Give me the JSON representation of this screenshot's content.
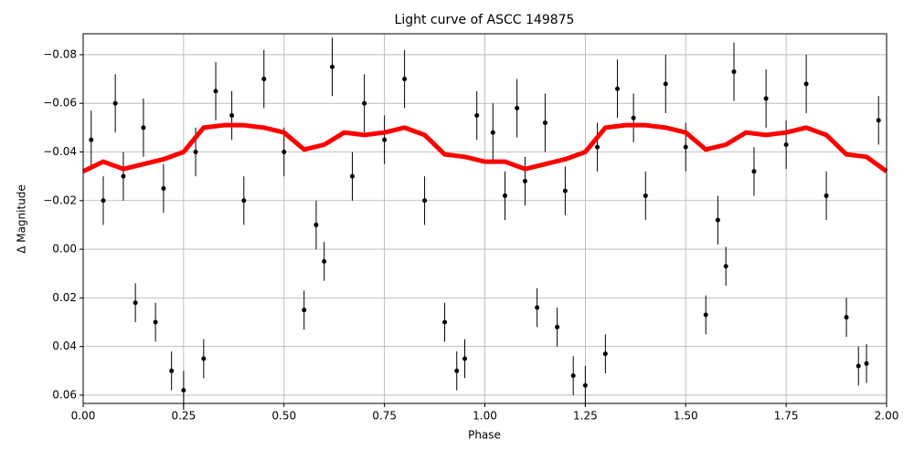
{
  "chart_data": {
    "type": "scatter",
    "title": "Light curve of ASCC 149875",
    "xlabel": "Phase",
    "ylabel": "Δ Magnitude",
    "xlim": [
      0,
      2
    ],
    "xticks": [
      {
        "value": 0,
        "label": "0.00"
      },
      {
        "value": 0.25,
        "label": "0.25"
      },
      {
        "value": 0.5,
        "label": "0.50"
      },
      {
        "value": 0.75,
        "label": "0.75"
      },
      {
        "value": 1,
        "label": "1.00"
      },
      {
        "value": 1.25,
        "label": "1.25"
      },
      {
        "value": 1.5,
        "label": "1.50"
      },
      {
        "value": 1.75,
        "label": "1.75"
      },
      {
        "value": 2,
        "label": "2.00"
      }
    ],
    "ylim": [
      0.0634,
      -0.0886
    ],
    "yticks": [
      {
        "value": -0.08,
        "label": "−0.08"
      },
      {
        "value": -0.06,
        "label": "−0.06"
      },
      {
        "value": -0.04,
        "label": "−0.04"
      },
      {
        "value": -0.02,
        "label": "−0.02"
      },
      {
        "value": 0,
        "label": "0.00"
      },
      0.02,
      0.04,
      0.06
    ],
    "grid": true,
    "points": {
      "color": "#000000",
      "x": [
        0.02,
        0.05,
        0.08,
        0.1,
        0.13,
        0.15,
        0.18,
        0.2,
        0.22,
        0.25,
        0.28,
        0.3,
        0.33,
        0.37,
        0.4,
        0.45,
        0.5,
        0.55,
        0.58,
        0.6,
        0.62,
        0.67,
        0.7,
        0.75,
        0.8,
        0.85,
        0.9,
        0.93,
        0.95,
        0.98,
        1.02,
        1.05,
        1.08,
        1.1,
        1.13,
        1.15,
        1.18,
        1.2,
        1.22,
        1.25,
        1.28,
        1.3,
        1.33,
        1.37,
        1.4,
        1.45,
        1.5,
        1.55,
        1.58,
        1.6,
        1.62,
        1.67,
        1.7,
        1.75,
        1.8,
        1.85,
        1.9,
        1.93,
        1.95,
        1.98
      ],
      "values": [
        -0.045,
        -0.02,
        -0.06,
        -0.03,
        0.022,
        -0.05,
        0.03,
        -0.025,
        0.05,
        0.058,
        -0.04,
        0.045,
        -0.065,
        -0.055,
        -0.02,
        -0.07,
        -0.04,
        0.025,
        -0.01,
        0.005,
        -0.075,
        -0.03,
        -0.06,
        -0.045,
        -0.07,
        -0.02,
        0.03,
        0.05,
        0.045,
        -0.055,
        -0.048,
        -0.022,
        -0.058,
        -0.028,
        0.024,
        -0.052,
        0.032,
        -0.024,
        0.052,
        0.056,
        -0.042,
        0.043,
        -0.066,
        -0.054,
        -0.022,
        -0.068,
        -0.042,
        0.027,
        -0.012,
        0.007,
        -0.073,
        -0.032,
        -0.062,
        -0.043,
        -0.068,
        -0.022,
        0.028,
        0.048,
        0.047,
        -0.053
      ],
      "errors": [
        0.012,
        0.01,
        0.012,
        0.01,
        0.008,
        0.012,
        0.008,
        0.01,
        0.008,
        0.008,
        0.01,
        0.008,
        0.012,
        0.01,
        0.01,
        0.012,
        0.01,
        0.008,
        0.01,
        0.008,
        0.012,
        0.01,
        0.012,
        0.01,
        0.012,
        0.01,
        0.008,
        0.008,
        0.008,
        0.01,
        0.012,
        0.01,
        0.012,
        0.01,
        0.008,
        0.012,
        0.008,
        0.01,
        0.008,
        0.008,
        0.01,
        0.008,
        0.012,
        0.01,
        0.01,
        0.012,
        0.01,
        0.008,
        0.01,
        0.008,
        0.012,
        0.01,
        0.012,
        0.01,
        0.012,
        0.01,
        0.008,
        0.008,
        0.008,
        0.01
      ]
    },
    "curve": {
      "color": "#ff0000",
      "x": [
        0,
        0.05,
        0.1,
        0.15,
        0.2,
        0.25,
        0.3,
        0.35,
        0.4,
        0.45,
        0.5,
        0.55,
        0.6,
        0.65,
        0.7,
        0.75,
        0.8,
        0.85,
        0.9,
        0.95,
        1,
        1.05,
        1.1,
        1.15,
        1.2,
        1.25,
        1.3,
        1.35,
        1.4,
        1.45,
        1.5,
        1.55,
        1.6,
        1.65,
        1.7,
        1.75,
        1.8,
        1.85,
        1.9,
        1.95,
        2
      ],
      "values": [
        -0.032,
        -0.036,
        -0.033,
        -0.035,
        -0.037,
        -0.04,
        -0.05,
        -0.051,
        -0.051,
        -0.05,
        -0.048,
        -0.041,
        -0.043,
        -0.048,
        -0.047,
        -0.048,
        -0.05,
        -0.047,
        -0.039,
        -0.038,
        -0.036,
        -0.036,
        -0.033,
        -0.035,
        -0.037,
        -0.04,
        -0.05,
        -0.051,
        -0.051,
        -0.05,
        -0.048,
        -0.041,
        -0.043,
        -0.048,
        -0.047,
        -0.048,
        -0.05,
        -0.047,
        -0.039,
        -0.038,
        -0.032
      ]
    }
  }
}
